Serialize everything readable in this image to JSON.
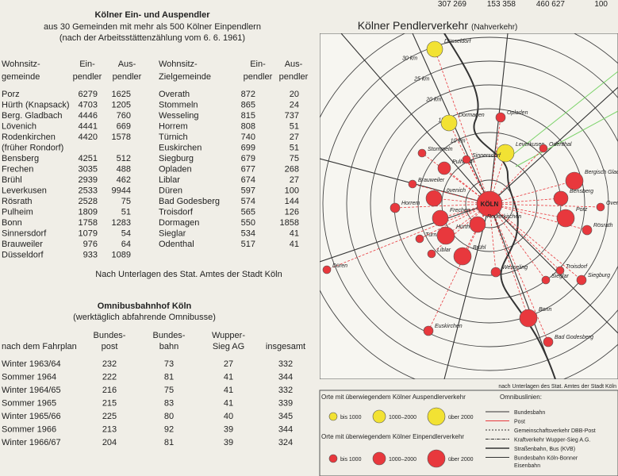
{
  "top_numbers": [
    "307 269",
    "153 358",
    "460 627",
    "100"
  ],
  "table1": {
    "title": "Kölner Ein- und Auspendler",
    "subtitle": [
      "aus 30 Gemeinden mit mehr als 500 Kölner Einpendlern",
      "(nach der Arbeitsstättenzählung vom 6. 6. 1961)"
    ],
    "headers": [
      "Wohnsitz-",
      "gemeinde",
      "Ein-",
      "pendler",
      "Aus-",
      "pendler",
      "Wohnsitz-",
      "Zielgemeinde",
      "Ein-",
      "pendler",
      "Aus-",
      "pendler"
    ],
    "rows": [
      [
        "Porz",
        6279,
        1625,
        "Overath",
        872,
        20
      ],
      [
        "Hürth (Knapsack)",
        4703,
        1205,
        "Stommeln",
        865,
        24
      ],
      [
        "Berg. Gladbach",
        4446,
        760,
        "Wesseling",
        815,
        737
      ],
      [
        "Lövenich",
        4441,
        669,
        "Horrem",
        808,
        51
      ],
      [
        "Rodenkirchen",
        4420,
        1578,
        "Türnich",
        740,
        27
      ],
      [
        "(früher Rondorf)",
        null,
        null,
        "Euskirchen",
        699,
        51
      ],
      [
        "Bensberg",
        4251,
        512,
        "Siegburg",
        679,
        75
      ],
      [
        "Frechen",
        3035,
        488,
        "Opladen",
        677,
        268
      ],
      [
        "Brühl",
        2939,
        462,
        "Liblar",
        674,
        27
      ],
      [
        "Leverkusen",
        2533,
        9944,
        "Düren",
        597,
        100
      ],
      [
        "Rösrath",
        2528,
        75,
        "Bad Godesberg",
        574,
        144
      ],
      [
        "Pulheim",
        1809,
        51,
        "Troisdorf",
        565,
        126
      ],
      [
        "Bonn",
        1758,
        1283,
        "Dormagen",
        550,
        1858
      ],
      [
        "Sinnersdorf",
        1079,
        54,
        "Sieglar",
        534,
        41
      ],
      [
        "Brauweiler",
        976,
        64,
        "Odenthal",
        517,
        41
      ],
      [
        "Düsseldorf",
        933,
        1089,
        null,
        null,
        null
      ]
    ],
    "source": "Nach Unterlagen des Stat. Amtes der Stadt Köln"
  },
  "table2": {
    "title": "Omnibusbahnhof Köln",
    "subtitle": "(werktäglich abfahrende Omnibusse)",
    "headers": [
      [
        "nach dem Fahrplan"
      ],
      [
        "Bundes-",
        "post"
      ],
      [
        "Bundes-",
        "bahn"
      ],
      [
        "Wupper-",
        "Sieg AG"
      ],
      [
        "insgesamt"
      ]
    ],
    "rows": [
      [
        "Winter 1963/64",
        232,
        73,
        27,
        332
      ],
      [
        "Sommer 1964",
        222,
        81,
        41,
        344
      ],
      [
        "Winter 1964/65",
        216,
        75,
        41,
        332
      ],
      [
        "Sommer 1965",
        215,
        83,
        41,
        339
      ],
      [
        "Winter 1965/66",
        225,
        80,
        40,
        345
      ],
      [
        "Sommer 1966",
        213,
        92,
        39,
        344
      ],
      [
        "Winter 1966/67",
        204,
        81,
        39,
        324
      ]
    ]
  },
  "map": {
    "title": "Kölner Pendlerverkehr",
    "subtitle": "(Nahverkehr)",
    "rings": [
      "5 km",
      "10 km",
      "15 km",
      "20 km",
      "25 km",
      "30 km"
    ],
    "nodes": [
      "Düsseldorf",
      "Dormagen",
      "Leverkusen",
      "Opladen",
      "Odenthal",
      "Stommeln",
      "Pulheim",
      "Sinnersdorf",
      "Bergisch Gladbach",
      "Brauweiler",
      "Lövenich",
      "Bensberg",
      "Horrem",
      "Overath",
      "Frechen",
      "Porz",
      "KÖLN",
      "Türnich",
      "Hürth",
      "Rodenkirchen",
      "Rösrath",
      "Liblar",
      "Brühl",
      "Wesseling",
      "Troisdorf",
      "Sieglar",
      "Siegburg",
      "Düren",
      "Euskirchen",
      "Bonn",
      "Bad Godesberg"
    ],
    "source": "nach Unterlagen des Stat. Amtes der Stadt Köln"
  },
  "legend": {
    "aus_title": "Orte mit überwiegendem Kölner Auspendlerverkehr",
    "ein_title": "Orte mit überwiegendem Kölner Einpendlerverkehr",
    "sizes": [
      "bis 1000",
      "1000–2000",
      "über 2000"
    ],
    "lines_title": "Omnibuslinien:",
    "lines": [
      "Bundesbahn",
      "Post",
      "Gemeinschaftsverkehr DBB-Post",
      "Kraftverkehr Wupper-Sieg A.G.",
      "Straßenbahn, Bus (KVB)",
      "Bundesbahn Köln-Bonner",
      "Eisenbahn"
    ]
  }
}
